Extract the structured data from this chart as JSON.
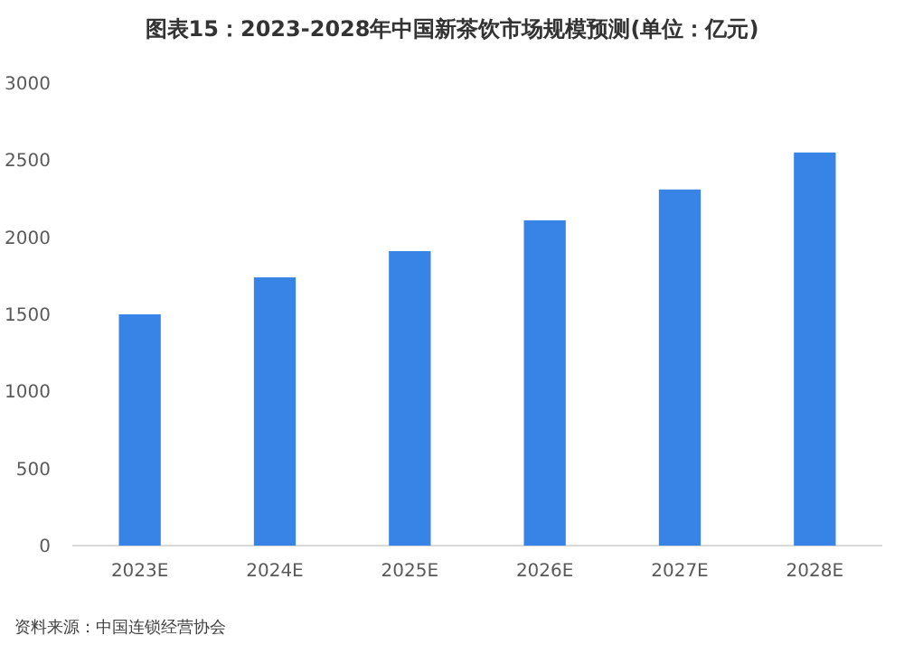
{
  "chart_data": {
    "type": "bar",
    "title": "图表15：2023-2028年中国新茶饮市场规模预测(单位：亿元)",
    "categories": [
      "2023E",
      "2024E",
      "2025E",
      "2026E",
      "2027E",
      "2028E"
    ],
    "values": [
      1500,
      1740,
      1910,
      2110,
      2310,
      2550
    ],
    "color": "#3884e6",
    "ylim": [
      0,
      3000
    ],
    "yticks": [
      0,
      500,
      1000,
      1500,
      2000,
      2500,
      3000
    ],
    "grid": false,
    "annotations": [
      "资料来源：中国连锁经营协会"
    ]
  }
}
